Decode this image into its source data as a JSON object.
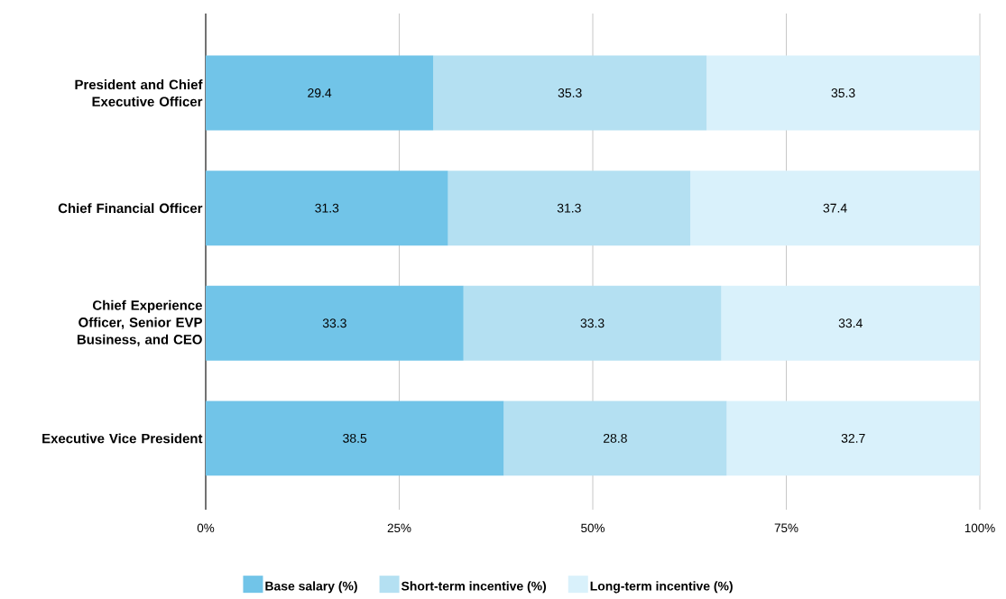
{
  "chart_data": {
    "type": "bar",
    "orientation": "horizontal",
    "stacked": true,
    "categories": [
      "President and Chief Executive Officer",
      "Chief Financial Officer",
      "Chief Experience Officer, Senior EVP Business, and CEO",
      "Executive Vice President"
    ],
    "series": [
      {
        "name": "Base salary (%)",
        "color": "#71c4e8",
        "values": [
          29.4,
          31.3,
          33.3,
          38.5
        ]
      },
      {
        "name": "Short-term incentive (%)",
        "color": "#b4e0f2",
        "values": [
          35.3,
          31.3,
          33.3,
          28.8
        ]
      },
      {
        "name": "Long-term incentive (%)",
        "color": "#d9f1fb",
        "values": [
          35.3,
          37.4,
          33.4,
          32.7
        ]
      }
    ],
    "xlim": [
      0,
      100
    ],
    "xticks": [
      {
        "value": 0,
        "label": "0%"
      },
      {
        "value": 25,
        "label": "25%"
      },
      {
        "value": 50,
        "label": "50%"
      },
      {
        "value": 75,
        "label": "75%"
      },
      {
        "value": 100,
        "label": "100%"
      }
    ],
    "grid": "x",
    "legend": "bottom",
    "data_labels": true
  }
}
